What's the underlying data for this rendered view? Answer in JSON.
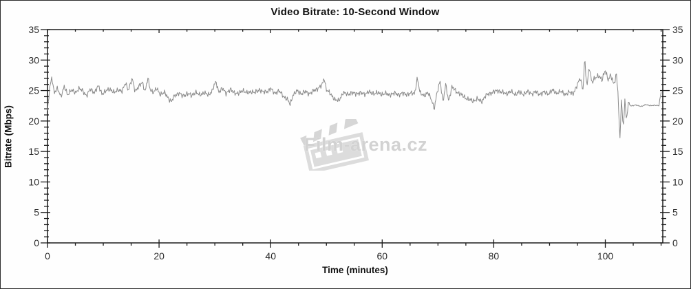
{
  "page": {
    "title": "Video Bitrate: 10-Second Window"
  },
  "watermark": {
    "text": "Film-arena.cz",
    "icon": "clapperboard-icon",
    "color": "#d6d6d6"
  },
  "chart_data": {
    "type": "line",
    "title": "Video Bitrate: 10-Second Window",
    "xlabel": "Time (minutes)",
    "ylabel": "Bitrate (Mbps)",
    "xlim": [
      0,
      110.3
    ],
    "ylim": [
      0,
      35
    ],
    "x_major_ticks": [
      0,
      20,
      40,
      60,
      80,
      100
    ],
    "x_minor_step": 5,
    "y_major_ticks": [
      0,
      5,
      10,
      15,
      20,
      25,
      30,
      35
    ],
    "y_minor_step": 1,
    "grid": false,
    "mirror_axes": true,
    "legend": "none",
    "line_color": "#8a8a8a",
    "axis_color": "#1a1a1a",
    "tick_label_color": "#2b2b2b",
    "sample_step_minutes": 0.125,
    "noise_zones": [
      {
        "from": 0,
        "to": 95,
        "amp": 0.55
      },
      {
        "from": 95,
        "to": 102.3,
        "amp": 0.65
      },
      {
        "from": 102.3,
        "to": 104.3,
        "amp": 0.5
      },
      {
        "from": 104.3,
        "to": 109.6,
        "amp": 0.12
      },
      {
        "from": 109.6,
        "to": 110.3,
        "amp": 0.25
      }
    ],
    "series": [
      {
        "name": "Video Bitrate",
        "unit": "Mbps",
        "anchors": [
          [
            0,
            21.5
          ],
          [
            0.4,
            25.5
          ],
          [
            0.8,
            27.3
          ],
          [
            1.2,
            24.6
          ],
          [
            1.8,
            25.3
          ],
          [
            2.4,
            24.1
          ],
          [
            3,
            25.6
          ],
          [
            3.6,
            24.3
          ],
          [
            4.2,
            25.1
          ],
          [
            5,
            24.6
          ],
          [
            5.6,
            25.4
          ],
          [
            6.3,
            24.9
          ],
          [
            7,
            24.2
          ],
          [
            7.7,
            25.2
          ],
          [
            8.4,
            24.7
          ],
          [
            9.1,
            25.7
          ],
          [
            9.8,
            24.5
          ],
          [
            10.5,
            24.9
          ],
          [
            11.2,
            25.3
          ],
          [
            12,
            24.6
          ],
          [
            12.7,
            25.2
          ],
          [
            13.4,
            24.8
          ],
          [
            14,
            26.3
          ],
          [
            14.5,
            25.1
          ],
          [
            15.2,
            26.9
          ],
          [
            15.7,
            25.0
          ],
          [
            16.4,
            25.6
          ],
          [
            17,
            26.4
          ],
          [
            17.5,
            24.9
          ],
          [
            18,
            27.0
          ],
          [
            18.4,
            25.2
          ],
          [
            19,
            24.7
          ],
          [
            19.6,
            25.3
          ],
          [
            20.2,
            24.4
          ],
          [
            21,
            24.6
          ],
          [
            21.6,
            23.9
          ],
          [
            22.2,
            23.1
          ],
          [
            22.8,
            24.2
          ],
          [
            23.5,
            24.6
          ],
          [
            24.2,
            24.1
          ],
          [
            25,
            24.5
          ],
          [
            25.8,
            24.2
          ],
          [
            26.5,
            24.7
          ],
          [
            27.2,
            24.3
          ],
          [
            28,
            24.6
          ],
          [
            28.8,
            24.3
          ],
          [
            29.5,
            24.9
          ],
          [
            30.2,
            26.5
          ],
          [
            30.7,
            24.8
          ],
          [
            31.4,
            25.3
          ],
          [
            32,
            24.6
          ],
          [
            32.8,
            25.1
          ],
          [
            33.5,
            24.7
          ],
          [
            34.2,
            24.4
          ],
          [
            35,
            25.1
          ],
          [
            35.8,
            24.5
          ],
          [
            36.5,
            24.9
          ],
          [
            37.2,
            24.6
          ],
          [
            38,
            25.2
          ],
          [
            38.7,
            24.7
          ],
          [
            39.4,
            24.9
          ],
          [
            40,
            25.3
          ],
          [
            40.7,
            24.6
          ],
          [
            41.5,
            24.9
          ],
          [
            42.2,
            24.2
          ],
          [
            43,
            23.5
          ],
          [
            43.5,
            22.7
          ],
          [
            44,
            24.3
          ],
          [
            44.8,
            24.9
          ],
          [
            45.5,
            24.5
          ],
          [
            46.2,
            24.8
          ],
          [
            47,
            24.5
          ],
          [
            47.8,
            25.0
          ],
          [
            48.5,
            25.4
          ],
          [
            49.2,
            25.8
          ],
          [
            49.6,
            27.1
          ],
          [
            50,
            25.2
          ],
          [
            50.8,
            24.3
          ],
          [
            51.5,
            23.6
          ],
          [
            52.2,
            23.2
          ],
          [
            53,
            24.7
          ],
          [
            53.8,
            24.3
          ],
          [
            54.5,
            24.7
          ],
          [
            55.2,
            24.4
          ],
          [
            56,
            24.7
          ],
          [
            56.8,
            24.3
          ],
          [
            57.5,
            24.9
          ],
          [
            58.2,
            24.4
          ],
          [
            59,
            24.7
          ],
          [
            59.8,
            24.3
          ],
          [
            60.5,
            24.6
          ],
          [
            61.2,
            24.2
          ],
          [
            62,
            24.6
          ],
          [
            62.8,
            24.3
          ],
          [
            63.5,
            24.6
          ],
          [
            64.2,
            24.3
          ],
          [
            65,
            24.6
          ],
          [
            65.8,
            24.4
          ],
          [
            66.3,
            27.2
          ],
          [
            66.8,
            24.5
          ],
          [
            67.5,
            24.2
          ],
          [
            68.2,
            24.6
          ],
          [
            69,
            23.2
          ],
          [
            69.3,
            21.9
          ],
          [
            69.8,
            24.4
          ],
          [
            70.4,
            26.7
          ],
          [
            70.9,
            23.1
          ],
          [
            71.4,
            26.0
          ],
          [
            71.9,
            23.3
          ],
          [
            72.5,
            25.6
          ],
          [
            73.2,
            24.9
          ],
          [
            74,
            24.4
          ],
          [
            74.8,
            23.9
          ],
          [
            75.5,
            23.5
          ],
          [
            76.2,
            23.3
          ],
          [
            77,
            23.6
          ],
          [
            77.8,
            23.2
          ],
          [
            78.5,
            24.1
          ],
          [
            79.2,
            24.5
          ],
          [
            80,
            24.8
          ],
          [
            80.8,
            25.0
          ],
          [
            81.5,
            24.7
          ],
          [
            82.2,
            24.5
          ],
          [
            83,
            24.8
          ],
          [
            83.8,
            24.4
          ],
          [
            84.5,
            24.7
          ],
          [
            85.2,
            24.4
          ],
          [
            86,
            24.8
          ],
          [
            86.8,
            24.5
          ],
          [
            87.5,
            24.8
          ],
          [
            88.2,
            24.4
          ],
          [
            89,
            24.7
          ],
          [
            89.8,
            24.5
          ],
          [
            90.5,
            25.0
          ],
          [
            91.2,
            24.6
          ],
          [
            92,
            24.8
          ],
          [
            92.8,
            24.4
          ],
          [
            93.5,
            24.7
          ],
          [
            94.2,
            24.5
          ],
          [
            95,
            25.9
          ],
          [
            95.5,
            27.1
          ],
          [
            96,
            25.2
          ],
          [
            96.3,
            30.2
          ],
          [
            96.7,
            25.4
          ],
          [
            97.1,
            29.1
          ],
          [
            97.6,
            26.3
          ],
          [
            98.2,
            27.0
          ],
          [
            98.8,
            27.6
          ],
          [
            99.4,
            26.6
          ],
          [
            100,
            28.4
          ],
          [
            100.5,
            26.8
          ],
          [
            101,
            27.4
          ],
          [
            101.5,
            26.1
          ],
          [
            102,
            27.7
          ],
          [
            102.3,
            24.1
          ],
          [
            102.6,
            16.4
          ],
          [
            102.9,
            24.0
          ],
          [
            103.2,
            18.6
          ],
          [
            103.5,
            23.5
          ],
          [
            103.8,
            19.9
          ],
          [
            104.1,
            22.9
          ],
          [
            104.6,
            22.5
          ],
          [
            105.5,
            22.6
          ],
          [
            106.5,
            22.4
          ],
          [
            107.3,
            22.7
          ],
          [
            108.2,
            22.5
          ],
          [
            109,
            22.6
          ],
          [
            109.6,
            22.5
          ],
          [
            110,
            24.7
          ]
        ]
      }
    ]
  }
}
